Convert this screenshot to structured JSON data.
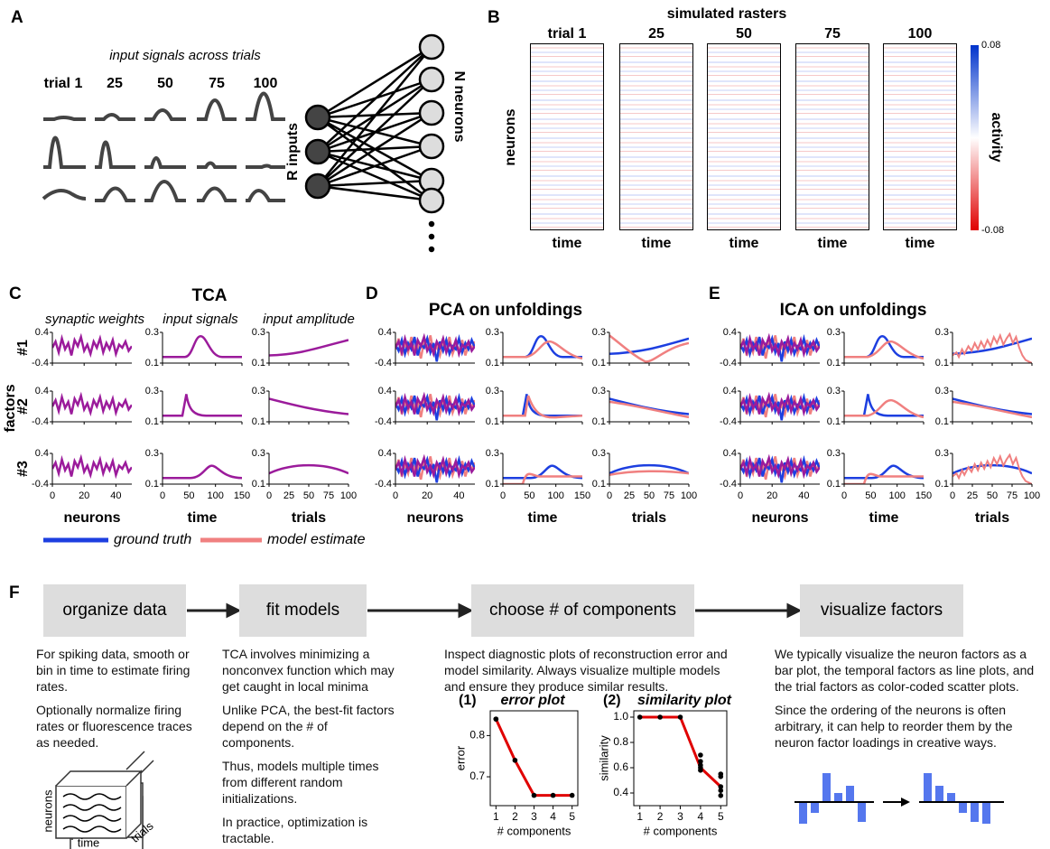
{
  "panel_a": {
    "label": "A",
    "title": "input signals across trials",
    "trial_labels": [
      "trial 1",
      "25",
      "50",
      "75",
      "100"
    ],
    "inputs_label": "R inputs",
    "neurons_label": "N neurons"
  },
  "panel_b": {
    "label": "B",
    "title": "simulated rasters",
    "trial_labels": [
      "trial 1",
      "25",
      "50",
      "75",
      "100"
    ],
    "y_label": "neurons",
    "x_label": "time",
    "colorbar": {
      "label": "activity",
      "ticks": [
        0.08,
        -0.08
      ]
    }
  },
  "panel_c": {
    "label": "C",
    "title": "TCA",
    "column_titles": [
      "synaptic weights",
      "input signals",
      "input amplitude"
    ],
    "row_labels": [
      "#1",
      "#2",
      "#3"
    ],
    "y_label": "factors"
  },
  "panel_d": {
    "label": "D",
    "title": "PCA on unfoldings"
  },
  "panel_e": {
    "label": "E",
    "title": "ICA on unfoldings"
  },
  "factor_axes": {
    "neuron_yticks": [
      0.4,
      -0.4
    ],
    "signal_yticks": [
      0.3,
      0.1
    ],
    "neuron_xticks": [
      0,
      20,
      40
    ],
    "time_xticks": [
      0,
      50,
      100,
      150
    ],
    "trial_xticks": [
      0,
      25,
      50,
      75,
      100
    ],
    "x_labels": [
      "neurons",
      "time",
      "trials"
    ]
  },
  "legend": [
    "ground truth",
    "model estimate"
  ],
  "panel_f": {
    "label": "F",
    "steps": [
      {
        "title": "organize data",
        "paragraphs": [
          "For spiking data, smooth or bin in time to estimate firing rates.",
          "Optionally normalize firing rates or fluorescence traces as needed."
        ]
      },
      {
        "title": "fit models",
        "paragraphs": [
          "TCA involves minimizing a nonconvex function which may get caught in local minima",
          "Unlike PCA, the best-fit factors depend on the # of components.",
          "Thus, models multiple times from different random initializations.",
          "In practice, optimization is tractable."
        ]
      },
      {
        "title": "choose # of components",
        "paragraphs": [
          "Inspect diagnostic plots of reconstruction error and model similarity. Always visualize multiple models and ensure they produce similar results."
        ]
      },
      {
        "title": "visualize factors",
        "paragraphs": [
          "We typically visualize the neuron factors as a bar plot, the temporal factors as line plots, and the trial factors as color-coded scatter plots.",
          "Since the ordering of the neurons is often arbitrary, it can help to reorder them by the neuron factor loadings in creative ways."
        ]
      }
    ],
    "cube_labels": [
      "neurons",
      "time",
      "trials"
    ],
    "plots": [
      {
        "number": "(1)",
        "title": "error plot",
        "y_label": "error",
        "x_label": "# components",
        "xlim": [
          0.7,
          5.3
        ],
        "xticks": [
          1,
          2,
          3,
          4,
          5
        ],
        "ylim": [
          0.63,
          0.86
        ],
        "yticks": [
          0.7,
          0.8
        ],
        "line": {
          "x": [
            1,
            2,
            3,
            4,
            5
          ],
          "values": [
            0.84,
            0.74,
            0.655,
            0.655,
            0.655
          ]
        },
        "points": {
          "x": [
            1,
            1,
            2,
            3,
            4,
            5
          ],
          "values": [
            0.84,
            0.84,
            0.74,
            0.655,
            0.655,
            0.655
          ]
        }
      },
      {
        "number": "(2)",
        "title": "similarity plot",
        "y_label": "similarity",
        "x_label": "# components",
        "xlim": [
          0.7,
          5.3
        ],
        "xticks": [
          1,
          2,
          3,
          4,
          5
        ],
        "ylim": [
          0.3,
          1.05
        ],
        "yticks": [
          0.4,
          0.6,
          0.8,
          {
            "value": 1,
            "label": "1.0"
          }
        ],
        "line": {
          "x": [
            1,
            2,
            3,
            4,
            5
          ],
          "values": [
            1,
            1,
            1,
            0.6,
            0.45
          ]
        },
        "points": {
          "x": [
            1,
            2,
            3,
            4,
            4,
            4,
            4,
            4,
            5,
            5,
            5,
            5,
            5
          ],
          "values": [
            1,
            1,
            1,
            0.7,
            0.65,
            0.62,
            0.6,
            0.58,
            0.55,
            0.53,
            0.45,
            0.42,
            0.38
          ]
        }
      }
    ]
  }
}
